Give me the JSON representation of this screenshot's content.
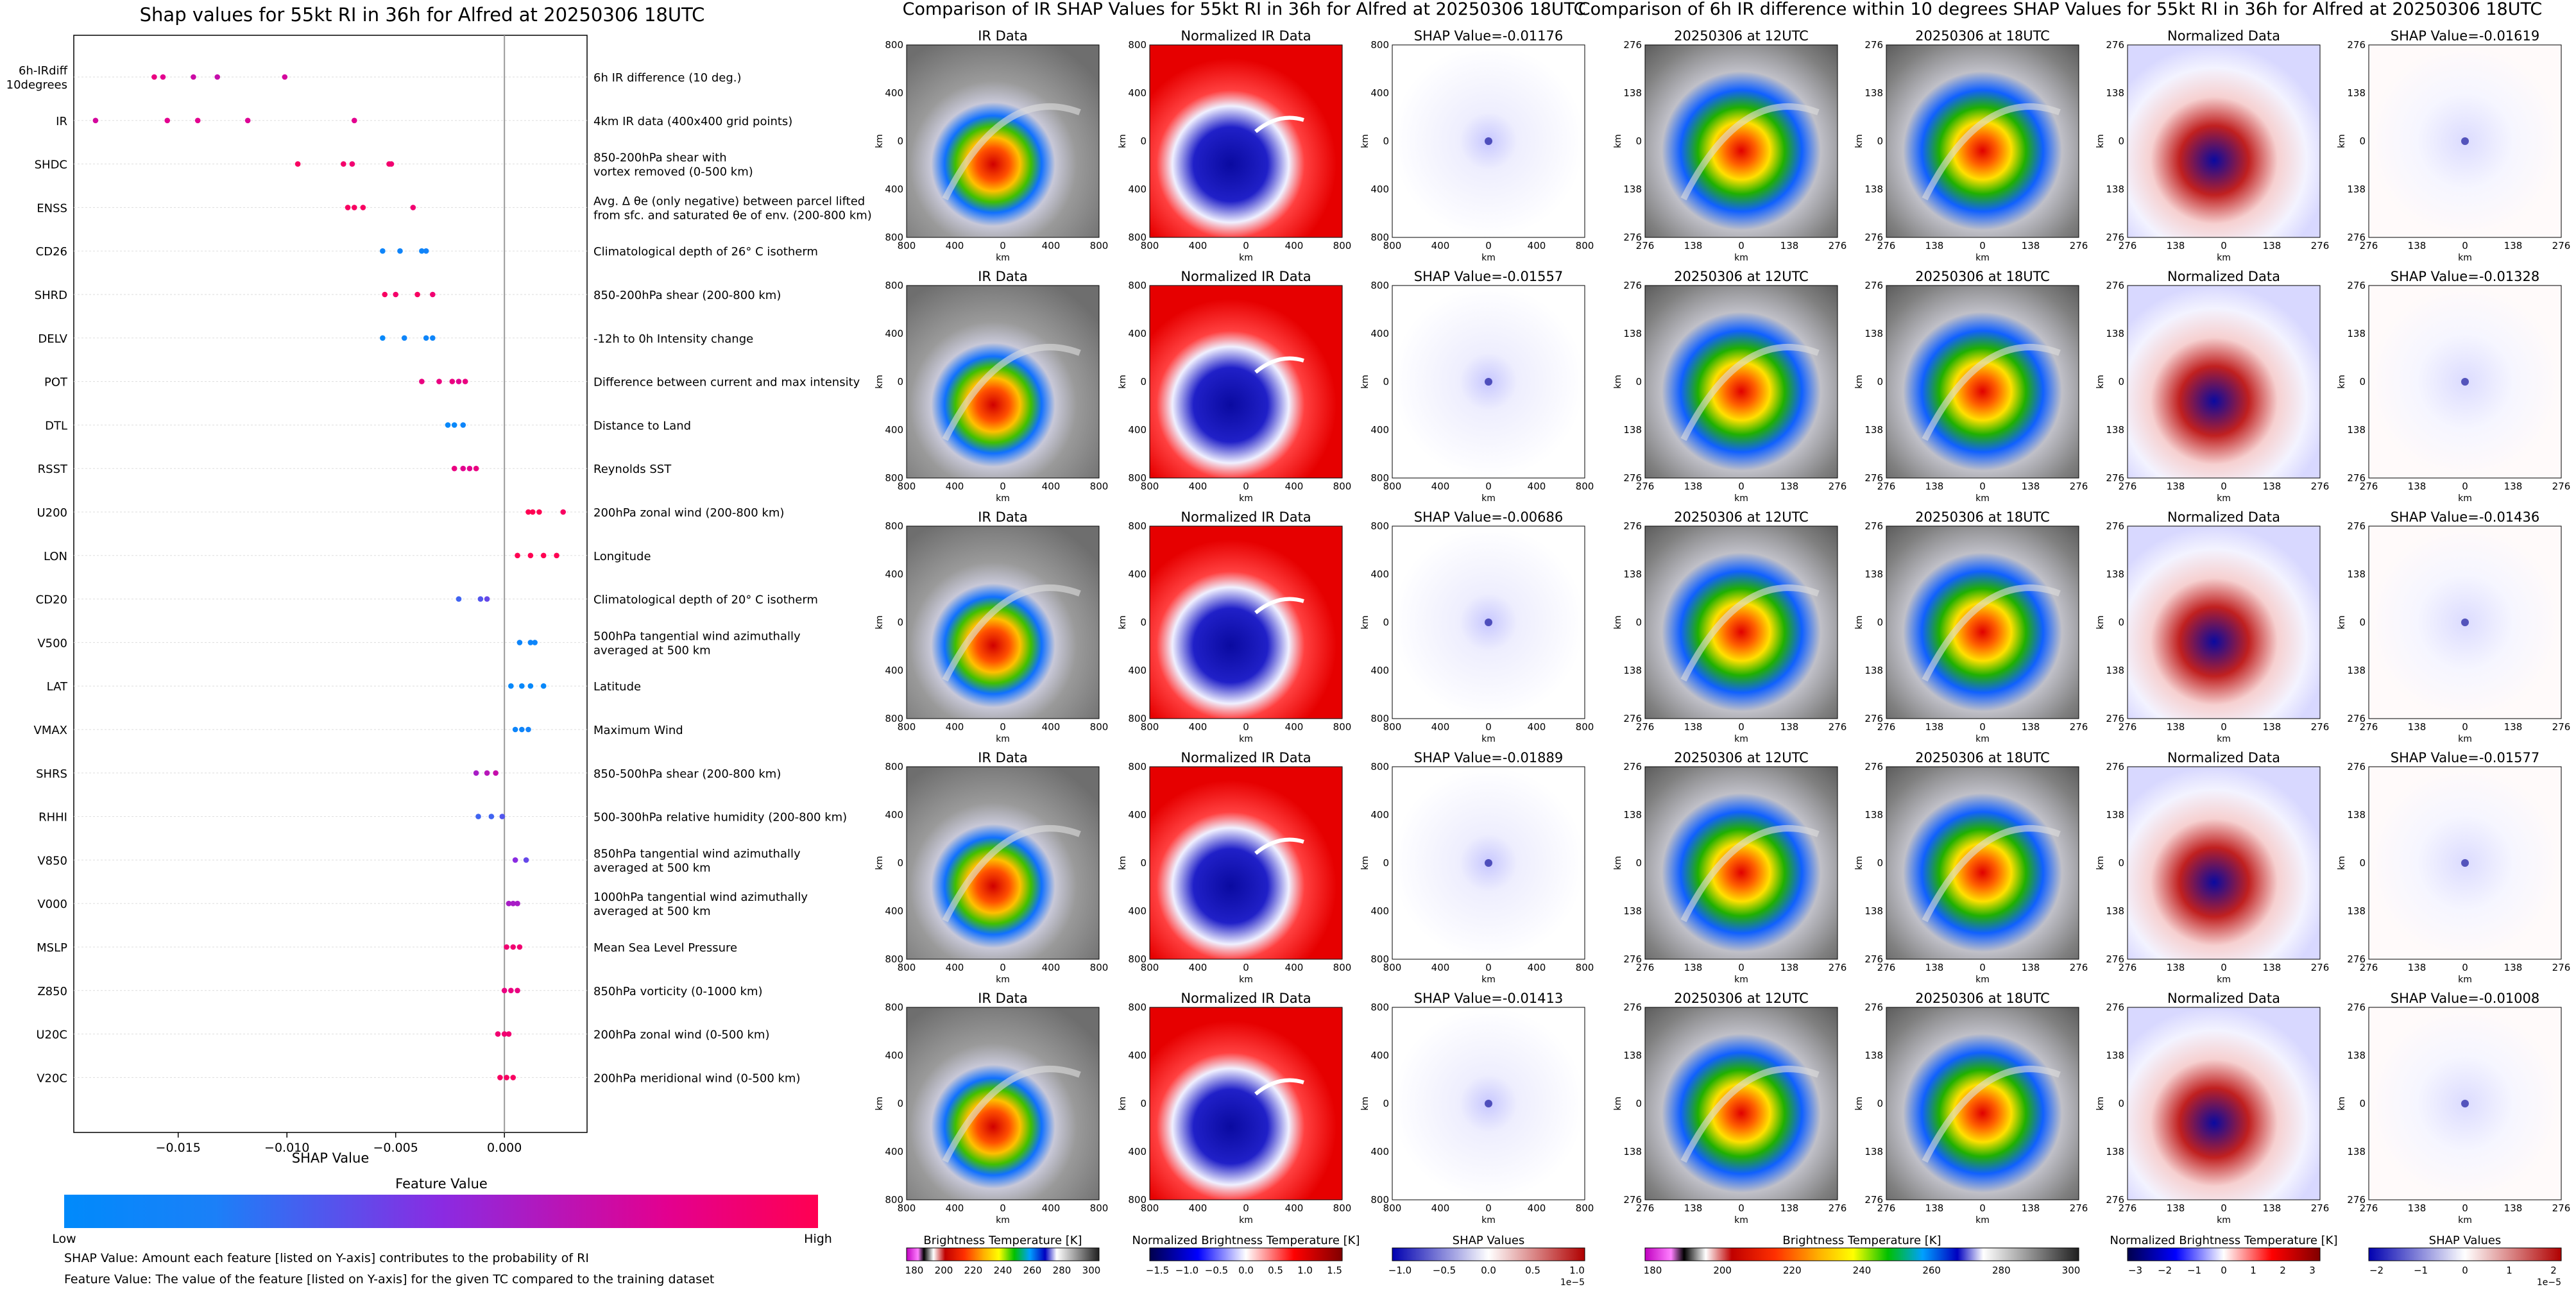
{
  "left_panel": {
    "title": "Shap values for 55kt RI in 36h for Alfred at 20250306 18UTC",
    "xlabel": "SHAP Value",
    "xticks": [
      "−0.015",
      "−0.010",
      "−0.005",
      "0.000"
    ],
    "colorbar_title": "Feature Value",
    "colorbar_low": "Low",
    "colorbar_high": "High",
    "note1": "SHAP Value: Amount each feature [listed on Y-axis] contributes to the probability of RI",
    "note2": "Feature Value: The value of the feature [listed on Y-axis] for the given TC compared to the training dataset"
  },
  "middle_panel": {
    "title": "Comparison of IR SHAP Values for 55kt RI in 36h for Alfred at 20250306 18UTC",
    "col_titles": [
      "IR Data",
      "Normalized IR Data"
    ],
    "shap_titles": [
      "SHAP Value=-0.01176",
      "SHAP Value=-0.01557",
      "SHAP Value=-0.00686",
      "SHAP Value=-0.01889",
      "SHAP Value=-0.01413"
    ],
    "ticks": [
      "800",
      "400",
      "0",
      "400",
      "800"
    ],
    "axis_unit": "km",
    "colorbars": [
      {
        "label": "Brightness Temperature [K]",
        "ticks": [
          "180",
          "200",
          "220",
          "240",
          "260",
          "280",
          "300"
        ]
      },
      {
        "label": "Normalized Brightness Temperature [K]",
        "ticks": [
          "−1.5",
          "−1.0",
          "−0.5",
          "0.0",
          "0.5",
          "1.0",
          "1.5"
        ]
      },
      {
        "label": "SHAP Values",
        "ticks": [
          "−1.0",
          "−0.5",
          "0.0",
          "0.5",
          "1.0"
        ],
        "offset": "1e−5"
      }
    ]
  },
  "right_panel": {
    "title": "Comparison of 6h IR difference within 10 degrees SHAP Values for 55kt RI in 36h for Alfred at 20250306 18UTC",
    "col_titles": [
      "20250306 at 12UTC",
      "20250306 at 18UTC",
      "Normalized Data"
    ],
    "shap_titles": [
      "SHAP Value=-0.01619",
      "SHAP Value=-0.01328",
      "SHAP Value=-0.01436",
      "SHAP Value=-0.01577",
      "SHAP Value=-0.01008"
    ],
    "ticks": [
      "276",
      "138",
      "0",
      "138",
      "276"
    ],
    "axis_unit": "km",
    "colorbars": [
      {
        "label": "Brightness Temperature [K]",
        "ticks": [
          "180",
          "200",
          "220",
          "240",
          "260",
          "280",
          "300"
        ]
      },
      {
        "label": "Normalized Brightness Temperature [K]",
        "ticks": [
          "−3",
          "−2",
          "−1",
          "0",
          "1",
          "2",
          "3"
        ]
      },
      {
        "label": "SHAP Values",
        "ticks": [
          "−2",
          "−1",
          "0",
          "1",
          "2"
        ],
        "offset": "1e−5"
      }
    ]
  },
  "colors": {
    "low": "#008afb",
    "mid": "#8a2be2",
    "high": "#ff0052",
    "gray_bg": "#8c8c8c",
    "norm_red": "#e60000",
    "norm_blue": "#0a0aa0"
  },
  "chart_data": [
    {
      "type": "scatter",
      "title": "Shap values for 55kt RI in 36h for Alfred at 20250306 18UTC",
      "xlabel": "SHAP Value",
      "xlim": [
        -0.0198,
        0.0038
      ],
      "color_scale": [
        "Low",
        "High"
      ],
      "series": [
        {
          "code": "6h-IRdiff\n10degrees",
          "desc": "6h IR difference (10 deg.)",
          "values": [
            -0.0161,
            -0.0157,
            -0.0143,
            -0.0132,
            -0.0101
          ],
          "colors": [
            0.85,
            0.8,
            0.72,
            0.7,
            0.75
          ]
        },
        {
          "code": "IR",
          "desc": "4km IR data (400x400 grid points)",
          "values": [
            -0.0188,
            -0.0155,
            -0.0141,
            -0.0118,
            -0.0069
          ],
          "colors": [
            0.75,
            0.8,
            0.8,
            0.78,
            0.8
          ]
        },
        {
          "code": "SHDC",
          "desc": "850-200hPa shear with\nvortex removed (0-500 km)",
          "values": [
            -0.0095,
            -0.0074,
            -0.007,
            -0.0053,
            -0.0052
          ],
          "colors": [
            0.95,
            0.92,
            0.9,
            0.92,
            0.9
          ]
        },
        {
          "code": "ENSS",
          "desc": "Avg. Δ θe (only negative) between parcel lifted\nfrom sfc. and saturated θe of env. (200-800 km)",
          "values": [
            -0.0072,
            -0.0069,
            -0.0065,
            -0.0042
          ],
          "colors": [
            0.95,
            0.95,
            0.95,
            0.9
          ]
        },
        {
          "code": "CD26",
          "desc": "Climatological depth of 26° C isotherm",
          "values": [
            -0.0056,
            -0.0048,
            -0.0038,
            -0.0036
          ],
          "colors": [
            0.1,
            0.12,
            0.1,
            0.15
          ]
        },
        {
          "code": "SHRD",
          "desc": "850-200hPa shear (200-800 km)",
          "values": [
            -0.0055,
            -0.005,
            -0.004,
            -0.0033
          ],
          "colors": [
            0.95,
            0.92,
            0.95,
            0.9
          ]
        },
        {
          "code": "DELV",
          "desc": "-12h to 0h Intensity change",
          "values": [
            -0.0056,
            -0.0046,
            -0.0036,
            -0.0033
          ],
          "colors": [
            0.05,
            0.1,
            0.1,
            0.1
          ]
        },
        {
          "code": "POT",
          "desc": "Difference between current and max intensity",
          "values": [
            -0.0038,
            -0.003,
            -0.0024,
            -0.0021,
            -0.0018
          ],
          "colors": [
            0.85,
            0.85,
            0.85,
            0.8,
            0.85
          ]
        },
        {
          "code": "DTL",
          "desc": "Distance to Land",
          "values": [
            -0.0026,
            -0.0023,
            -0.0019
          ],
          "colors": [
            0.05,
            0.05,
            0.1
          ]
        },
        {
          "code": "RSST",
          "desc": "Reynolds SST",
          "values": [
            -0.0023,
            -0.0019,
            -0.0016,
            -0.0013
          ],
          "colors": [
            0.85,
            0.8,
            0.8,
            0.85
          ]
        },
        {
          "code": "U200",
          "desc": "200hPa zonal wind (200-800 km)",
          "values": [
            0.0011,
            0.0013,
            0.0016,
            0.0027
          ],
          "colors": [
            1.0,
            1.0,
            1.0,
            0.95
          ]
        },
        {
          "code": "LON",
          "desc": "Longitude",
          "values": [
            0.0006,
            0.0012,
            0.0018,
            0.0024
          ],
          "colors": [
            1.0,
            1.0,
            1.0,
            1.0
          ]
        },
        {
          "code": "CD20",
          "desc": "Climatological depth of 20° C isotherm",
          "values": [
            -0.0021,
            -0.0011,
            -0.0008
          ],
          "colors": [
            0.3,
            0.35,
            0.4
          ]
        },
        {
          "code": "V500",
          "desc": "500hPa tangential wind azimuthally\naveraged at 500 km",
          "values": [
            0.0007,
            0.0012,
            0.0014
          ],
          "colors": [
            0.1,
            0.1,
            0.1
          ]
        },
        {
          "code": "LAT",
          "desc": "Latitude",
          "values": [
            0.0003,
            0.0008,
            0.0012,
            0.0018
          ],
          "colors": [
            0.05,
            0.05,
            0.05,
            0.05
          ]
        },
        {
          "code": "VMAX",
          "desc": "Maximum Wind",
          "values": [
            0.0005,
            0.0008,
            0.0011
          ],
          "colors": [
            0.1,
            0.1,
            0.15
          ]
        },
        {
          "code": "SHRS",
          "desc": "850-500hPa shear (200-800 km)",
          "values": [
            -0.0013,
            -0.0008,
            -0.0004
          ],
          "colors": [
            0.6,
            0.65,
            0.7
          ]
        },
        {
          "code": "RHHI",
          "desc": "500-300hPa relative humidity (200-800 km)",
          "values": [
            -0.0012,
            -0.0006,
            -0.0001
          ],
          "colors": [
            0.3,
            0.3,
            0.35
          ]
        },
        {
          "code": "V850",
          "desc": "850hPa tangential wind azimuthally\naveraged at 500 km",
          "values": [
            0.0005,
            0.001
          ],
          "colors": [
            0.5,
            0.4
          ]
        },
        {
          "code": "V000",
          "desc": "1000hPa tangential wind azimuthally\naveraged at 500 km",
          "values": [
            0.0002,
            0.0004,
            0.0006
          ],
          "colors": [
            0.6,
            0.6,
            0.6
          ]
        },
        {
          "code": "MSLP",
          "desc": "Mean Sea Level Pressure",
          "values": [
            0.0001,
            0.0004,
            0.0007
          ],
          "colors": [
            0.9,
            0.9,
            0.9
          ]
        },
        {
          "code": "Z850",
          "desc": "850hPa vorticity (0-1000 km)",
          "values": [
            0.0,
            0.0003,
            0.0006
          ],
          "colors": [
            0.85,
            0.85,
            0.85
          ]
        },
        {
          "code": "U20C",
          "desc": "200hPa zonal wind (0-500 km)",
          "values": [
            -0.0003,
            0.0,
            0.0002
          ],
          "colors": [
            0.9,
            0.9,
            0.9
          ]
        },
        {
          "code": "V20C",
          "desc": "200hPa meridional wind (0-500 km)",
          "values": [
            -0.0002,
            0.0001,
            0.0004
          ],
          "colors": [
            0.95,
            0.95,
            0.95
          ]
        }
      ]
    },
    {
      "type": "heatmap",
      "title": "Comparison of IR SHAP Values for 55kt RI in 36h for Alfred at 20250306 18UTC",
      "rows": 5,
      "columns": [
        "IR Data",
        "Normalized IR Data",
        "SHAP"
      ],
      "shap_values": [
        -0.01176,
        -0.01557,
        -0.00686,
        -0.01889,
        -0.01413
      ],
      "xlim": [
        -800,
        800
      ],
      "ylim": [
        -800,
        800
      ],
      "unit": "km"
    },
    {
      "type": "heatmap",
      "title": "Comparison of 6h IR difference within 10 degrees SHAP Values for 55kt RI in 36h for Alfred at 20250306 18UTC",
      "rows": 5,
      "columns": [
        "20250306 at 12UTC",
        "20250306 at 18UTC",
        "Normalized Data",
        "SHAP"
      ],
      "shap_values": [
        -0.01619,
        -0.01328,
        -0.01436,
        -0.01577,
        -0.01008
      ],
      "xlim": [
        -276,
        276
      ],
      "ylim": [
        -276,
        276
      ],
      "unit": "km"
    }
  ]
}
